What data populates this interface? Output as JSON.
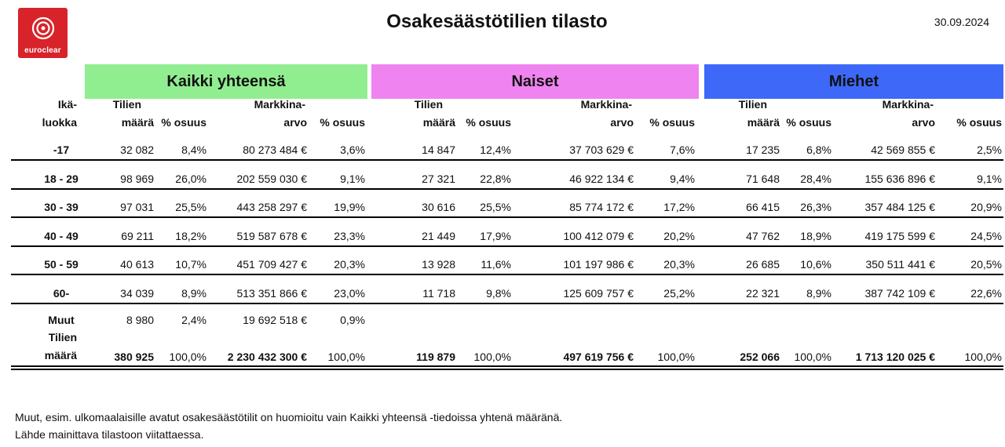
{
  "header": {
    "logo_text": "euroclear",
    "title": "Osakesäästötilien tilasto",
    "date": "30.09.2024"
  },
  "groups": [
    {
      "key": "kaikki",
      "label": "Kaikki yhteensä",
      "color": "#90ee90"
    },
    {
      "key": "naiset",
      "label": "Naiset",
      "color": "#ef83f0"
    },
    {
      "key": "miehet",
      "label": "Miehet",
      "color": "#3d68f8"
    }
  ],
  "columns": {
    "age_line1": "Ikä-",
    "age_line2": "luokka",
    "count_line1": "Tilien",
    "count_line2": "määrä",
    "pct": "% osuus",
    "value_line1": "Markkina-",
    "value_line2": "arvo"
  },
  "rows": [
    {
      "age": "-17",
      "k": [
        "32 082",
        "8,4%",
        "80 273 484 €",
        "3,6%"
      ],
      "n": [
        "14 847",
        "12,4%",
        "37 703 629 €",
        "7,6%"
      ],
      "m": [
        "17 235",
        "6,8%",
        "42 569 855 €",
        "2,5%"
      ]
    },
    {
      "age": "18 - 29",
      "k": [
        "98 969",
        "26,0%",
        "202 559 030 €",
        "9,1%"
      ],
      "n": [
        "27 321",
        "22,8%",
        "46 922 134 €",
        "9,4%"
      ],
      "m": [
        "71 648",
        "28,4%",
        "155 636 896 €",
        "9,1%"
      ]
    },
    {
      "age": "30 - 39",
      "k": [
        "97 031",
        "25,5%",
        "443 258 297 €",
        "19,9%"
      ],
      "n": [
        "30 616",
        "25,5%",
        "85 774 172 €",
        "17,2%"
      ],
      "m": [
        "66 415",
        "26,3%",
        "357 484 125 €",
        "20,9%"
      ]
    },
    {
      "age": "40 - 49",
      "k": [
        "69 211",
        "18,2%",
        "519 587 678 €",
        "23,3%"
      ],
      "n": [
        "21 449",
        "17,9%",
        "100 412 079 €",
        "20,2%"
      ],
      "m": [
        "47 762",
        "18,9%",
        "419 175 599 €",
        "24,5%"
      ]
    },
    {
      "age": "50 - 59",
      "k": [
        "40 613",
        "10,7%",
        "451 709 427 €",
        "20,3%"
      ],
      "n": [
        "13 928",
        "11,6%",
        "101 197 986 €",
        "20,3%"
      ],
      "m": [
        "26 685",
        "10,6%",
        "350 511 441 €",
        "20,5%"
      ]
    },
    {
      "age": "60-",
      "k": [
        "34 039",
        "8,9%",
        "513 351 866 €",
        "23,0%"
      ],
      "n": [
        "11 718",
        "9,8%",
        "125 609 757 €",
        "25,2%"
      ],
      "m": [
        "22 321",
        "8,9%",
        "387 742 109 €",
        "22,6%"
      ]
    }
  ],
  "muut": {
    "age": "Muut",
    "k": [
      "8 980",
      "2,4%",
      "19 692 518 €",
      "0,9%"
    ]
  },
  "total": {
    "label_line1": "Tilien",
    "label_line2": "määrä",
    "k": [
      "380 925",
      "100,0%",
      "2 230 432 300 €",
      "100,0%"
    ],
    "n": [
      "119 879",
      "100,0%",
      "497 619 756 €",
      "100,0%"
    ],
    "m": [
      "252 066",
      "100,0%",
      "1 713 120 025 €",
      "100,0%"
    ]
  },
  "footnotes": [
    "Muut, esim. ulkomaalaisille avatut osakesäästötilit on huomioitu vain Kaikki yhteensä -tiedoissa yhtenä määränä.",
    "Lähde mainittava tilastoon viitattaessa."
  ]
}
